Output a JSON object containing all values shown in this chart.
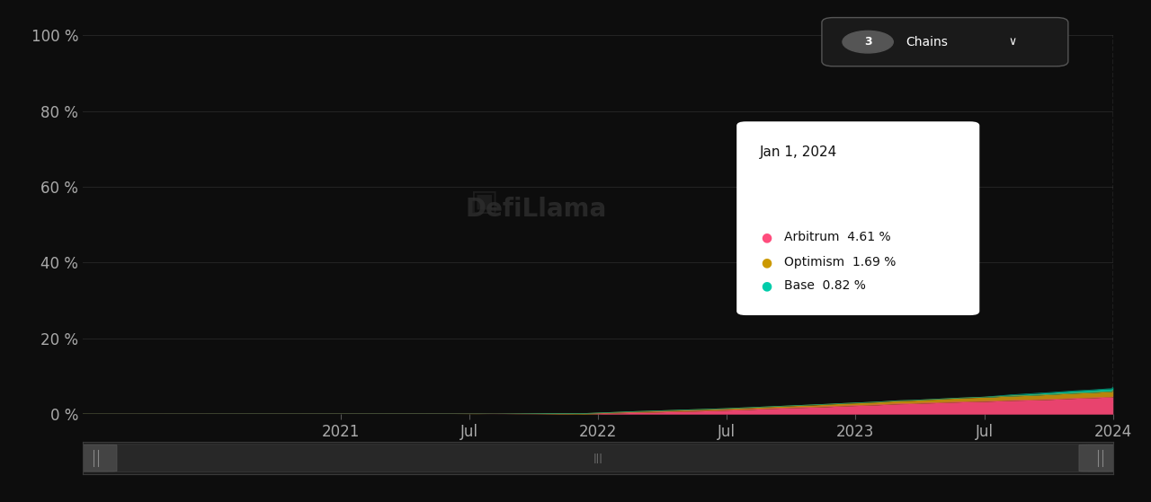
{
  "background_color": "#0d0d0d",
  "plot_bg_color": "#0d0d0d",
  "left_panel_color": "#111111",
  "ylabel_ticks": [
    "0 %",
    "20 %",
    "40 %",
    "60 %",
    "80 %",
    "100 %"
  ],
  "ytick_values": [
    0,
    20,
    40,
    60,
    80,
    100
  ],
  "x_tick_labels": [
    "2021",
    "Jul",
    "2022",
    "Jul",
    "2023",
    "Jul",
    "2024"
  ],
  "grid_color": "#2a2a2a",
  "tick_color": "#aaaaaa",
  "arbitrum_color": "#e8436e",
  "optimism_color": "#b8860b",
  "base_color": "#00b894",
  "dashed_line_color": "#777777",
  "tooltip_bg": "#ffffff",
  "tooltip_title": "Jan 1, 2024",
  "tooltip_items": [
    {
      "label": "Arbitrum",
      "value": "4.61 %",
      "color": "#ff4d7d"
    },
    {
      "label": "Optimism",
      "value": "1.69 %",
      "color": "#cc9900"
    },
    {
      "label": "Base",
      "value": "0.82 %",
      "color": "#00ccaa"
    }
  ],
  "watermark_text": "DefiLlama"
}
